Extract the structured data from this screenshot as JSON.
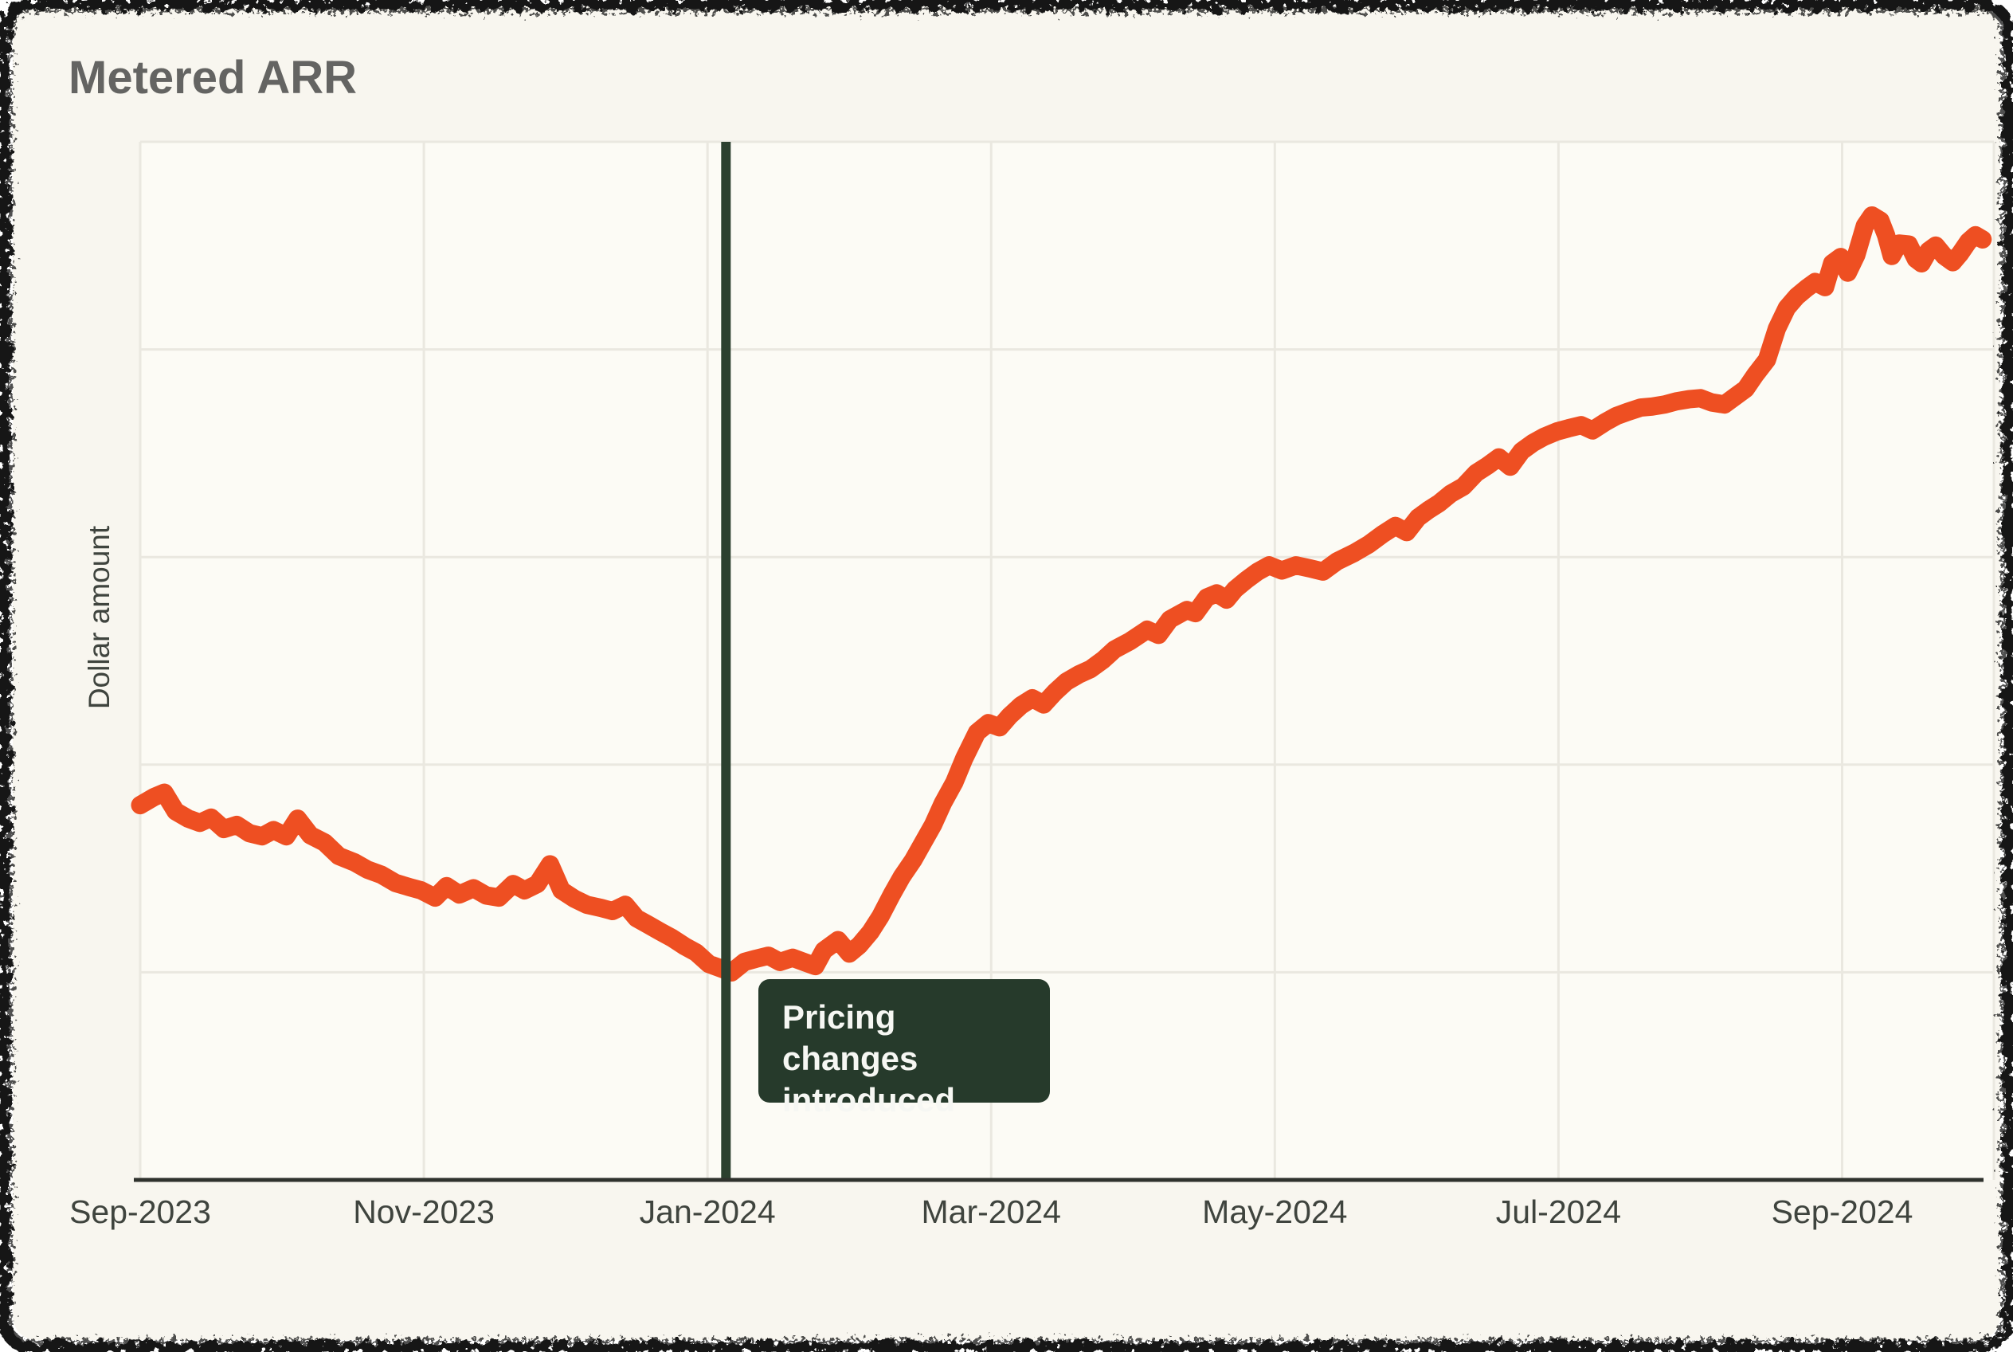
{
  "header": {
    "title": "Metered ARR"
  },
  "annotation": {
    "line1": "Pricing changes",
    "line2": "introduced"
  },
  "x_axis": {
    "ticks": [
      {
        "m": 0,
        "label": "Sep-2023"
      },
      {
        "m": 2,
        "label": "Nov-2023"
      },
      {
        "m": 4,
        "label": "Jan-2024"
      },
      {
        "m": 6,
        "label": "Mar-2024"
      },
      {
        "m": 8,
        "label": "May-2024"
      },
      {
        "m": 10,
        "label": "Jul-2024"
      },
      {
        "m": 12,
        "label": "Sep-2024"
      }
    ]
  },
  "colors": {
    "accent_orange": "#EE4F22",
    "annotation_bg": "#263A2B",
    "annotation_text": "#F6F7F3",
    "event_line": "#2C402F",
    "axis": "#2F322D",
    "gridline": "#EAE8E0",
    "card_bg": "#F8F6EF",
    "plot_bg": "#FCFBF5",
    "title_text": "#646462",
    "tick_text": "#3F443E",
    "frame": "#161616"
  },
  "chart_data": {
    "type": "line",
    "title": "Metered ARR",
    "xlabel": "",
    "ylabel": "Dollar amount",
    "x_unit": "months since Sep-2023",
    "x_domain_months": [
      0,
      13.07
    ],
    "y_domain": [
      0,
      100
    ],
    "y_gridlines": [
      20,
      40,
      60,
      80,
      100
    ],
    "grid": true,
    "legend": false,
    "event_marker": {
      "month": 4.13,
      "label": "Pricing changes introduced"
    },
    "series": [
      {
        "name": "Metered ARR",
        "points": [
          [
            0.0,
            36.1
          ],
          [
            0.1,
            36.9
          ],
          [
            0.17,
            37.3
          ],
          [
            0.25,
            35.5
          ],
          [
            0.34,
            34.8
          ],
          [
            0.42,
            34.4
          ],
          [
            0.5,
            34.9
          ],
          [
            0.59,
            33.8
          ],
          [
            0.68,
            34.2
          ],
          [
            0.77,
            33.4
          ],
          [
            0.86,
            33.1
          ],
          [
            0.94,
            33.7
          ],
          [
            1.03,
            33.1
          ],
          [
            1.11,
            34.8
          ],
          [
            1.2,
            33.2
          ],
          [
            1.3,
            32.5
          ],
          [
            1.4,
            31.2
          ],
          [
            1.51,
            30.6
          ],
          [
            1.6,
            29.9
          ],
          [
            1.7,
            29.4
          ],
          [
            1.8,
            28.6
          ],
          [
            1.9,
            28.2
          ],
          [
            1.98,
            27.9
          ],
          [
            2.08,
            27.2
          ],
          [
            2.16,
            28.3
          ],
          [
            2.25,
            27.5
          ],
          [
            2.35,
            28.1
          ],
          [
            2.44,
            27.4
          ],
          [
            2.53,
            27.2
          ],
          [
            2.63,
            28.5
          ],
          [
            2.71,
            27.9
          ],
          [
            2.8,
            28.5
          ],
          [
            2.89,
            30.4
          ],
          [
            2.97,
            27.9
          ],
          [
            3.06,
            27.1
          ],
          [
            3.15,
            26.5
          ],
          [
            3.25,
            26.2
          ],
          [
            3.33,
            25.9
          ],
          [
            3.42,
            26.5
          ],
          [
            3.5,
            25.2
          ],
          [
            3.58,
            24.6
          ],
          [
            3.67,
            23.9
          ],
          [
            3.75,
            23.3
          ],
          [
            3.84,
            22.5
          ],
          [
            3.92,
            21.9
          ],
          [
            4.01,
            20.8
          ],
          [
            4.09,
            20.4
          ],
          [
            4.17,
            20.0
          ],
          [
            4.26,
            21.0
          ],
          [
            4.34,
            21.3
          ],
          [
            4.43,
            21.6
          ],
          [
            4.51,
            21.0
          ],
          [
            4.6,
            21.4
          ],
          [
            4.68,
            21.0
          ],
          [
            4.76,
            20.6
          ],
          [
            4.82,
            22.1
          ],
          [
            4.92,
            23.1
          ],
          [
            5.0,
            21.8
          ],
          [
            5.07,
            22.6
          ],
          [
            5.15,
            23.9
          ],
          [
            5.22,
            25.4
          ],
          [
            5.3,
            27.5
          ],
          [
            5.37,
            29.2
          ],
          [
            5.45,
            30.8
          ],
          [
            5.52,
            32.5
          ],
          [
            5.59,
            34.2
          ],
          [
            5.66,
            36.3
          ],
          [
            5.74,
            38.3
          ],
          [
            5.81,
            40.6
          ],
          [
            5.9,
            43.1
          ],
          [
            5.98,
            44.0
          ],
          [
            6.06,
            43.6
          ],
          [
            6.13,
            44.7
          ],
          [
            6.21,
            45.7
          ],
          [
            6.29,
            46.4
          ],
          [
            6.37,
            45.8
          ],
          [
            6.45,
            47.0
          ],
          [
            6.53,
            48.0
          ],
          [
            6.62,
            48.7
          ],
          [
            6.7,
            49.2
          ],
          [
            6.79,
            50.1
          ],
          [
            6.87,
            51.1
          ],
          [
            6.98,
            51.9
          ],
          [
            7.1,
            53.0
          ],
          [
            7.18,
            52.5
          ],
          [
            7.26,
            54.0
          ],
          [
            7.38,
            54.9
          ],
          [
            7.44,
            54.6
          ],
          [
            7.52,
            56.1
          ],
          [
            7.59,
            56.5
          ],
          [
            7.66,
            55.9
          ],
          [
            7.72,
            56.9
          ],
          [
            7.8,
            57.8
          ],
          [
            7.88,
            58.6
          ],
          [
            7.96,
            59.2
          ],
          [
            8.05,
            58.7
          ],
          [
            8.15,
            59.2
          ],
          [
            8.25,
            58.9
          ],
          [
            8.34,
            58.6
          ],
          [
            8.44,
            59.6
          ],
          [
            8.56,
            60.4
          ],
          [
            8.66,
            61.2
          ],
          [
            8.76,
            62.2
          ],
          [
            8.85,
            63.0
          ],
          [
            8.93,
            62.4
          ],
          [
            9.01,
            63.8
          ],
          [
            9.08,
            64.5
          ],
          [
            9.16,
            65.2
          ],
          [
            9.24,
            66.1
          ],
          [
            9.33,
            66.8
          ],
          [
            9.42,
            68.1
          ],
          [
            9.5,
            68.8
          ],
          [
            9.58,
            69.6
          ],
          [
            9.66,
            68.7
          ],
          [
            9.74,
            70.2
          ],
          [
            9.82,
            71.0
          ],
          [
            9.9,
            71.6
          ],
          [
            9.99,
            72.1
          ],
          [
            10.07,
            72.4
          ],
          [
            10.16,
            72.7
          ],
          [
            10.24,
            72.2
          ],
          [
            10.33,
            73.0
          ],
          [
            10.41,
            73.6
          ],
          [
            10.49,
            74.0
          ],
          [
            10.58,
            74.4
          ],
          [
            10.66,
            74.5
          ],
          [
            10.75,
            74.7
          ],
          [
            10.83,
            75.0
          ],
          [
            10.92,
            75.2
          ],
          [
            11.0,
            75.3
          ],
          [
            11.08,
            74.9
          ],
          [
            11.17,
            74.7
          ],
          [
            11.25,
            75.5
          ],
          [
            11.32,
            76.2
          ],
          [
            11.39,
            77.6
          ],
          [
            11.47,
            79.0
          ],
          [
            11.54,
            82.0
          ],
          [
            11.61,
            84.0
          ],
          [
            11.68,
            85.1
          ],
          [
            11.75,
            85.9
          ],
          [
            11.81,
            86.5
          ],
          [
            11.88,
            86.0
          ],
          [
            11.93,
            88.3
          ],
          [
            11.99,
            88.9
          ],
          [
            12.04,
            87.4
          ],
          [
            12.1,
            89.1
          ],
          [
            12.16,
            91.9
          ],
          [
            12.21,
            92.9
          ],
          [
            12.27,
            92.4
          ],
          [
            12.31,
            91.0
          ],
          [
            12.35,
            89.0
          ],
          [
            12.4,
            90.2
          ],
          [
            12.47,
            90.1
          ],
          [
            12.52,
            88.7
          ],
          [
            12.56,
            88.3
          ],
          [
            12.61,
            89.5
          ],
          [
            12.66,
            90.0
          ],
          [
            12.72,
            89.0
          ],
          [
            12.78,
            88.4
          ],
          [
            12.83,
            89.2
          ],
          [
            12.89,
            90.4
          ],
          [
            12.94,
            91.0
          ],
          [
            12.99,
            90.6
          ]
        ]
      }
    ]
  }
}
